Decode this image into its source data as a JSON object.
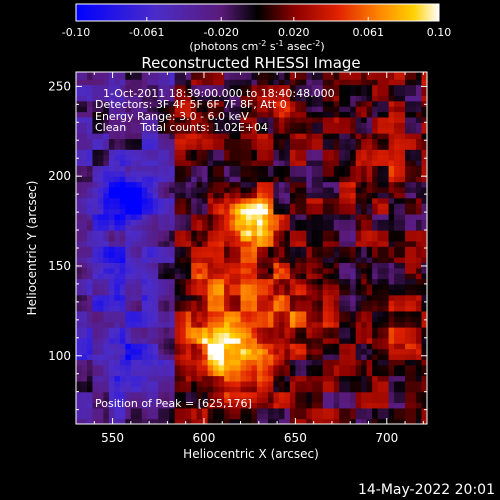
{
  "chart_data": {
    "type": "heatmap",
    "title": "Reconstructed RHESSI Image",
    "xlabel": "Heliocentric X (arcsec)",
    "ylabel": "Heliocentric Y (arcsec)",
    "xlim": [
      530,
      722
    ],
    "ylim": [
      62,
      258
    ],
    "x_ticks": [
      550,
      600,
      650,
      700
    ],
    "y_ticks": [
      100,
      150,
      200,
      250
    ],
    "colorbar": {
      "min": -0.1,
      "max": 0.1,
      "ticks": [
        "-0.10",
        "-0.061",
        "-0.020",
        "0.020",
        "0.061",
        "0.10"
      ],
      "unit_label": "(photons cm",
      "unit_sup1": "-2",
      "unit_mid": " s",
      "unit_sup2": "-1",
      "unit_mid2": " asec",
      "unit_sup3": "-2",
      "unit_end": ")"
    },
    "annotations": [
      "1-Oct-2011 18:39:00.000 to 18:40:48.000",
      "Detectors: 3F 4F 5F 6F 7F 8F, Att 0",
      "Energy Range: 3.0 - 6.0 keV",
      "Clean    Total counts: 1.02E+04"
    ],
    "peak_label": "Position of Peak = [625,176]",
    "peak": [
      625,
      176
    ],
    "sources": [
      {
        "x": 626,
        "y": 177,
        "sigma": 9,
        "amp": 0.095
      },
      {
        "x": 621,
        "y": 97,
        "sigma": 13,
        "amp": 0.07
      },
      {
        "x": 606,
        "y": 108,
        "sigma": 11,
        "amp": 0.05
      },
      {
        "x": 614,
        "y": 140,
        "sigma": 20,
        "amp": 0.04
      },
      {
        "x": 653,
        "y": 125,
        "sigma": 15,
        "amp": 0.03
      },
      {
        "x": 695,
        "y": 205,
        "sigma": 14,
        "amp": 0.025
      },
      {
        "x": 705,
        "y": 115,
        "sigma": 12,
        "amp": 0.025
      },
      {
        "x": 590,
        "y": 232,
        "sigma": 10,
        "amp": 0.03
      },
      {
        "x": 640,
        "y": 240,
        "sigma": 12,
        "amp": 0.02
      },
      {
        "x": 558,
        "y": 187,
        "sigma": 11,
        "amp": -0.09
      },
      {
        "x": 553,
        "y": 145,
        "sigma": 14,
        "amp": -0.04
      },
      {
        "x": 560,
        "y": 100,
        "sigma": 14,
        "amp": -0.035
      },
      {
        "x": 672,
        "y": 145,
        "sigma": 10,
        "amp": -0.02
      }
    ]
  },
  "footer": {
    "timestamp": "14-May-2022 20:01"
  }
}
